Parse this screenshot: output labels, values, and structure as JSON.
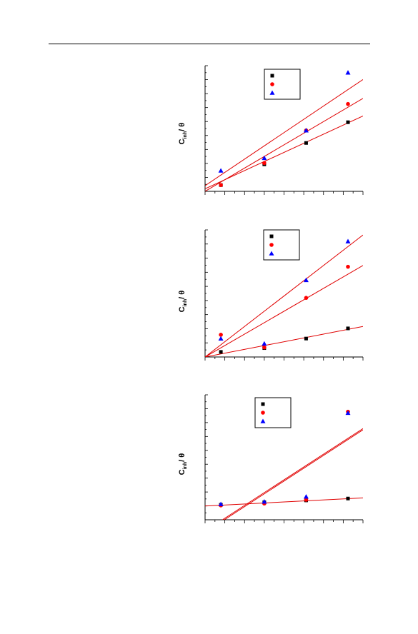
{
  "chart_data": [
    {
      "type": "scatter",
      "ylabel": "C_inh / θ",
      "xlim": [
        0,
        1
      ],
      "ylim": [
        0,
        1
      ],
      "grid": false,
      "legend": "top-center",
      "series": [
        {
          "marker": "square",
          "color": "#000000",
          "x": [
            0.1,
            0.375,
            0.64,
            0.905
          ],
          "y": [
            0.05,
            0.215,
            0.385,
            0.55
          ],
          "fit": [
            [
              0.0,
              0.02
            ],
            [
              1.0,
              0.6
            ]
          ]
        },
        {
          "marker": "circle",
          "color": "#ff0000",
          "x": [
            0.1,
            0.375,
            0.64,
            0.905
          ],
          "y": [
            0.05,
            0.225,
            0.485,
            0.695
          ],
          "fit": [
            [
              0.0,
              0.0
            ],
            [
              1.0,
              0.74
            ]
          ]
        },
        {
          "marker": "triangle",
          "color": "#0000ff",
          "x": [
            0.1,
            0.375,
            0.64,
            0.905
          ],
          "y": [
            0.165,
            0.265,
            0.485,
            0.945
          ],
          "fit": [
            [
              0.0,
              0.045
            ],
            [
              1.0,
              0.89
            ]
          ]
        }
      ]
    },
    {
      "type": "scatter",
      "ylabel": "C_inh / θ",
      "xlim": [
        0,
        1
      ],
      "ylim": [
        0,
        1
      ],
      "grid": false,
      "legend": "top-center",
      "series": [
        {
          "marker": "square",
          "color": "#000000",
          "x": [
            0.1,
            0.375,
            0.64,
            0.905
          ],
          "y": [
            0.04,
            0.07,
            0.145,
            0.225
          ],
          "fit": [
            [
              0.0,
              0.0
            ],
            [
              1.0,
              0.24
            ]
          ]
        },
        {
          "marker": "circle",
          "color": "#ff0000",
          "x": [
            0.1,
            0.375,
            0.64,
            0.905
          ],
          "y": [
            0.175,
            0.075,
            0.465,
            0.71
          ],
          "fit": [
            [
              0.0,
              0.0
            ],
            [
              1.0,
              0.72
            ]
          ]
        },
        {
          "marker": "triangle",
          "color": "#0000ff",
          "x": [
            0.1,
            0.375,
            0.64,
            0.905
          ],
          "y": [
            0.145,
            0.105,
            0.605,
            0.91
          ],
          "fit": [
            [
              0.0,
              0.0
            ],
            [
              1.0,
              0.96
            ]
          ]
        }
      ]
    },
    {
      "type": "scatter",
      "ylabel": "C_inh / θ",
      "xlim": [
        0,
        1
      ],
      "ylim": [
        0,
        1
      ],
      "grid": false,
      "legend": "top-center",
      "series": [
        {
          "marker": "square",
          "color": "#000000",
          "x": [
            0.1,
            0.375,
            0.64,
            0.905
          ],
          "y": [
            0.12,
            0.14,
            0.155,
            0.17
          ],
          "fit": [
            [
              0.0,
              0.11
            ],
            [
              1.0,
              0.175
            ]
          ]
        },
        {
          "marker": "circle",
          "color": "#ff0000",
          "x": [
            0.1,
            0.375,
            0.64,
            0.905
          ],
          "y": [
            0.115,
            0.13,
            0.16,
            0.865
          ],
          "fit": [
            [
              0.11,
              -0.01
            ],
            [
              1.0,
              0.72
            ]
          ]
        },
        {
          "marker": "triangle",
          "color": "#0000ff",
          "x": [
            0.1,
            0.375,
            0.64,
            0.905
          ],
          "y": [
            0.125,
            0.145,
            0.185,
            0.855
          ],
          "fit": [
            [
              0.11,
              0.0
            ],
            [
              1.0,
              0.73
            ]
          ]
        }
      ]
    }
  ]
}
